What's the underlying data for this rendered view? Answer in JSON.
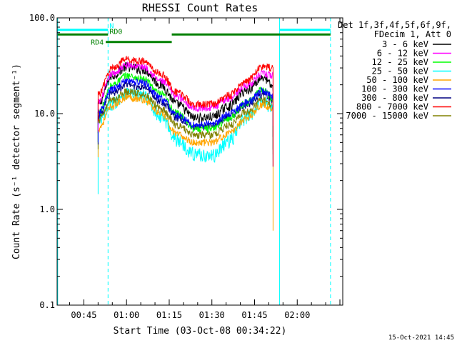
{
  "chart_data": {
    "type": "line",
    "title": "RHESSI Count Rates",
    "xlabel": "Start Time (03-Oct-08 00:34:22)",
    "ylabel": "Count Rate (s⁻¹ detector segment⁻¹)",
    "yscale": "log",
    "ylim": [
      0.1,
      100.0
    ],
    "xlim_minutes": [
      35.6,
      136.0
    ],
    "xticks": [
      {
        "label": "00:45",
        "minutes": 45
      },
      {
        "label": "01:00",
        "minutes": 60
      },
      {
        "label": "01:15",
        "minutes": 75
      },
      {
        "label": "01:30",
        "minutes": 90
      },
      {
        "label": "01:45",
        "minutes": 105
      },
      {
        "label": "02:00",
        "minutes": 120
      }
    ],
    "yticks": [
      {
        "label": "0.1",
        "value": 0.1
      },
      {
        "label": "1.0",
        "value": 1.0
      },
      {
        "label": "10.0",
        "value": 10.0
      },
      {
        "label": "100.0",
        "value": 100.0
      }
    ],
    "vlines": [
      {
        "minutes": 35.8,
        "style": "solid",
        "color": "#00ffff"
      },
      {
        "minutes": 53.5,
        "style": "dashed",
        "color": "#00ffff"
      },
      {
        "minutes": 113.8,
        "style": "solid",
        "color": "#00ffff"
      },
      {
        "minutes": 131.7,
        "style": "dashed",
        "color": "#00ffff"
      }
    ],
    "flag_bars": [
      {
        "label": "N",
        "color": "#00ffff",
        "segments": [
          [
            35.8,
            53.5
          ],
          [
            113.8,
            131.7
          ]
        ],
        "level": 75.0
      },
      {
        "label": "RD0",
        "color": "#008000",
        "segments": [
          [
            35.8,
            53.5
          ],
          [
            75.9,
            131.7
          ]
        ],
        "level": 67.0
      },
      {
        "label": "RD4",
        "color": "#008000",
        "segments": [
          [
            52.7,
            75.9
          ]
        ],
        "level": 56.0
      }
    ],
    "time_keys_minutes": [
      50.0,
      55.0,
      60.0,
      66.0,
      72.0,
      78.0,
      84.0,
      90.0,
      96.0,
      102.0,
      108.0,
      111.5
    ],
    "data_span_minutes": [
      50.0,
      111.5
    ],
    "series": [
      {
        "name": "3 - 6 keV",
        "color": "#000000",
        "values": [
          12.5,
          25.0,
          31.0,
          29.0,
          20.0,
          12.5,
          9.0,
          9.2,
          12.0,
          17.5,
          24.0,
          19.0
        ]
      },
      {
        "name": "6 - 12 keV",
        "color": "#ff00ff",
        "values": [
          13.0,
          26.0,
          32.0,
          31.0,
          22.0,
          15.0,
          11.5,
          11.5,
          14.5,
          19.5,
          26.0,
          25.0
        ]
      },
      {
        "name": "12 - 25 keV",
        "color": "#00ff00",
        "values": [
          10.0,
          20.0,
          25.0,
          23.0,
          16.0,
          10.0,
          7.0,
          7.0,
          9.0,
          13.0,
          18.0,
          14.0
        ]
      },
      {
        "name": "25 - 50 keV",
        "color": "#00ffff",
        "values": [
          8.0,
          13.0,
          16.5,
          15.5,
          9.5,
          5.2,
          3.8,
          3.6,
          5.2,
          9.0,
          14.0,
          11.0
        ]
      },
      {
        "name": "50 - 100 keV",
        "color": "#ffa500",
        "values": [
          7.0,
          12.0,
          15.0,
          14.0,
          10.0,
          6.0,
          5.0,
          5.0,
          6.2,
          9.0,
          12.5,
          11.0
        ]
      },
      {
        "name": "100 - 300 keV",
        "color": "#0000ff",
        "values": [
          10.0,
          18.0,
          22.0,
          21.0,
          14.5,
          9.5,
          7.6,
          7.8,
          9.8,
          13.0,
          17.5,
          15.0
        ]
      },
      {
        "name": "300 - 800 keV",
        "color": "#000080",
        "values": [
          9.5,
          16.5,
          20.0,
          19.0,
          13.5,
          9.0,
          7.2,
          7.4,
          9.3,
          12.5,
          16.0,
          14.0
        ]
      },
      {
        "name": "800 - 7000 keV",
        "color": "#ff0000",
        "values": [
          16.0,
          30.0,
          37.0,
          35.0,
          26.0,
          16.5,
          12.5,
          12.5,
          15.5,
          22.0,
          31.0,
          30.0
        ]
      },
      {
        "name": "7000 - 15000 keV",
        "color": "#808000",
        "values": [
          8.5,
          14.0,
          17.0,
          16.0,
          11.5,
          7.5,
          6.0,
          6.0,
          7.5,
          10.5,
          14.0,
          12.5
        ]
      }
    ]
  },
  "legend": {
    "header_line1": "Det 1f,3f,4f,5f,6f,9f,",
    "header_line2": "FDecim 1, Att 0"
  },
  "timestamp": "15-Oct-2021 14:45"
}
